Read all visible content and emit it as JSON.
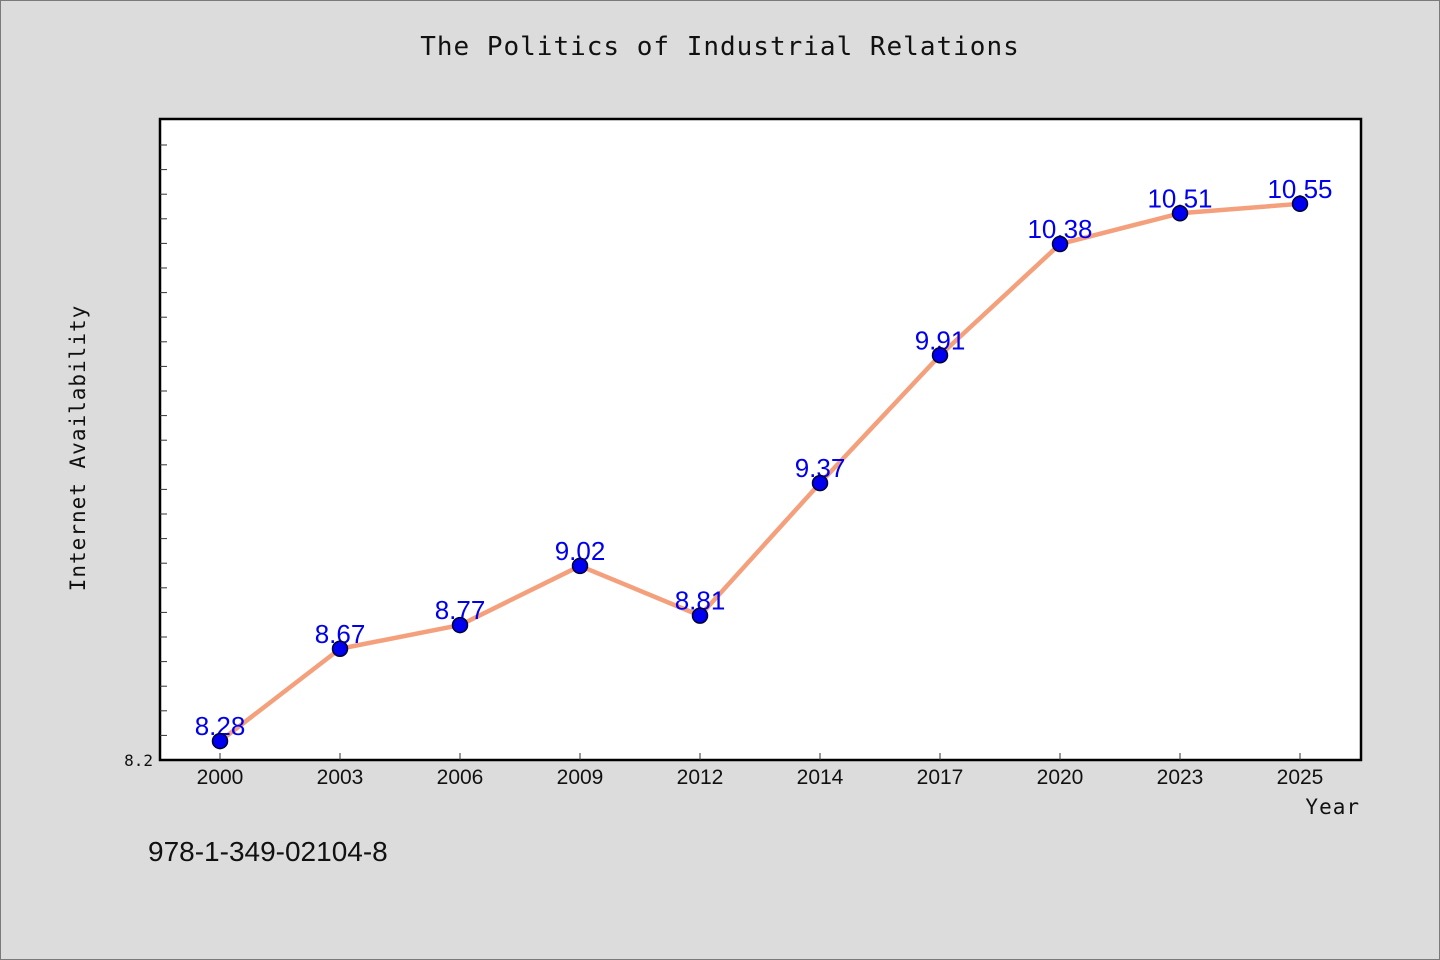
{
  "chart_data": {
    "type": "line",
    "title": "The Politics of Industrial Relations",
    "xlabel": "Year",
    "ylabel": "Internet Availability",
    "categories": [
      "2000",
      "2003",
      "2006",
      "2009",
      "2012",
      "2014",
      "2017",
      "2020",
      "2023",
      "2025"
    ],
    "series": [
      {
        "values": [
          8.28,
          8.67,
          8.77,
          9.02,
          8.81,
          9.37,
          9.91,
          10.38,
          10.51,
          10.55
        ]
      }
    ],
    "ylim": [
      8.2,
      10.8
    ],
    "y_tick_labels": [
      "8.2"
    ],
    "grid": false,
    "line_color": "#f4a07c",
    "marker_color": "#0000ee",
    "data_label_color": "#0000ee",
    "plot_background": "#ffffff"
  },
  "footer": {
    "isbn": "978-1-349-02104-8"
  }
}
